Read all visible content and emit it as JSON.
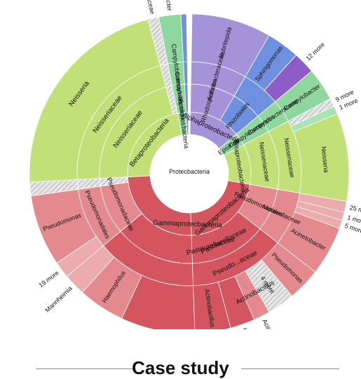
{
  "footer": {
    "title": "Case study"
  },
  "colors": {
    "proteo": "#ffffff",
    "gamma": "#d4545f",
    "gamma_light": "#e48a8e",
    "gamma_lighter": "#ecabac",
    "beta": "#c2e078",
    "beta_light": "#d2e895",
    "epsilon": "#8fd79f",
    "epsilon_light": "#a9e2b5",
    "alpha": "#a493d9",
    "alpha_light": "#b9abe4",
    "blue": "#6f8fe0",
    "purple": "#8e5cc9",
    "magenta": "#c73fb0",
    "hatch": "#c8c8c8"
  },
  "chart_data": [
    {
      "type": "sunburst",
      "label": "left-chart",
      "center": "Protecbacteria",
      "segments": [
        {
          "ring": 1,
          "start": 97,
          "end": 267,
          "color": "gamma",
          "label": "Gammaprotecbacteria"
        },
        {
          "ring": 1,
          "start": 267,
          "end": 349,
          "color": "beta",
          "label": "Betaproteobacteria"
        },
        {
          "ring": 1,
          "start": 349,
          "end": 357,
          "color": "epsilon",
          "label": "Epsilon... bacteria"
        },
        {
          "ring": 1,
          "start": 357,
          "end": 359,
          "color": "blue",
          "label": ""
        },
        {
          "ring": 2,
          "start": 97,
          "end": 230,
          "color": "gamma",
          "label": "Pasteurellaceae"
        },
        {
          "ring": 2,
          "start": 230,
          "end": 262,
          "color": "gamma_light",
          "label": "Pseudomonadaceae"
        },
        {
          "ring": 2,
          "start": 262,
          "end": 267,
          "color": "hatch",
          "label": ""
        },
        {
          "ring": 2,
          "start": 267,
          "end": 345,
          "color": "beta",
          "label": "Neisseriaceae"
        },
        {
          "ring": 2,
          "start": 345,
          "end": 349,
          "color": "hatch",
          "label": ""
        },
        {
          "ring": 2,
          "start": 349,
          "end": 357,
          "color": "epsilon",
          "label": "Campylobacterales"
        },
        {
          "ring": 2,
          "start": 357,
          "end": 359,
          "color": "blue",
          "label": ""
        },
        {
          "ring": 3,
          "start": 97,
          "end": 230,
          "color": "gamma",
          "label": ""
        },
        {
          "ring": 3,
          "start": 230,
          "end": 262,
          "color": "gamma_light",
          "label": "Pseudomonadales"
        },
        {
          "ring": 3,
          "start": 262,
          "end": 267,
          "color": "hatch",
          "label": ""
        },
        {
          "ring": 3,
          "start": 267,
          "end": 345,
          "color": "beta",
          "label": "Neisseriaceae"
        },
        {
          "ring": 3,
          "start": 345,
          "end": 349,
          "color": "hatch",
          "label": ""
        },
        {
          "ring": 3,
          "start": 349,
          "end": 357,
          "color": "epsilon",
          "label": "Campylobacteraceae"
        },
        {
          "ring": 3,
          "start": 357,
          "end": 359,
          "color": "blue",
          "label": ""
        },
        {
          "ring": 4,
          "start": 97,
          "end": 205,
          "color": "gamma",
          "label": "Actinobacillus"
        },
        {
          "ring": 4,
          "start": 205,
          "end": 222,
          "color": "gamma_light",
          "label": "Haemophilus"
        },
        {
          "ring": 4,
          "start": 222,
          "end": 230,
          "color": "gamma_lighter",
          "label": "Mannheimia"
        },
        {
          "ring": 4,
          "start": 230,
          "end": 236,
          "color": "gamma_lighter",
          "label": "19 more"
        },
        {
          "ring": 4,
          "start": 236,
          "end": 262,
          "color": "gamma_light",
          "label": "Pseudomonas"
        },
        {
          "ring": 4,
          "start": 262,
          "end": 267,
          "color": "hatch",
          "label": ""
        },
        {
          "ring": 4,
          "start": 267,
          "end": 345,
          "color": "beta",
          "label": "Neisseria"
        },
        {
          "ring": 4,
          "start": 345,
          "end": 349,
          "color": "hatch",
          "label": "Helicobacteraceae"
        },
        {
          "ring": 4,
          "start": 349,
          "end": 357,
          "color": "epsilon",
          "label": "Campylobacter"
        },
        {
          "ring": 4,
          "start": 357,
          "end": 359,
          "color": "blue",
          "label": ""
        }
      ]
    },
    {
      "type": "sunburst",
      "label": "right-chart",
      "segments": [
        {
          "ring": 1,
          "start": 1,
          "end": 50,
          "color": "alpha",
          "label": "Alphaproteobacteria"
        },
        {
          "ring": 1,
          "start": 50,
          "end": 62,
          "color": "epsilon",
          "label": "Epsilonp..."
        },
        {
          "ring": 1,
          "start": 62,
          "end": 100,
          "color": "beta",
          "label": "Betaproteobacteria"
        },
        {
          "ring": 1,
          "start": 100,
          "end": 178,
          "color": "gamma",
          "label": "Gammaproteobacteria"
        },
        {
          "ring": 2,
          "start": 1,
          "end": 30,
          "color": "alpha",
          "label": "Rhodospirillales"
        },
        {
          "ring": 2,
          "start": 30,
          "end": 50,
          "color": "blue",
          "label": "Rhizobiales"
        },
        {
          "ring": 2,
          "start": 50,
          "end": 62,
          "color": "epsilon",
          "label": "Campylobacterales"
        },
        {
          "ring": 2,
          "start": 62,
          "end": 100,
          "color": "beta",
          "label": "Neisseriaceae"
        },
        {
          "ring": 2,
          "start": 100,
          "end": 128,
          "color": "gamma_light",
          "label": "Pseudomonadales"
        },
        {
          "ring": 2,
          "start": 128,
          "end": 178,
          "color": "gamma",
          "label": "Pasteurellaceae"
        },
        {
          "ring": 3,
          "start": 1,
          "end": 30,
          "color": "alpha",
          "label": "Acetobacteraceae"
        },
        {
          "ring": 3,
          "start": 30,
          "end": 50,
          "color": "blue",
          "label": ""
        },
        {
          "ring": 3,
          "start": 50,
          "end": 62,
          "color": "epsilon",
          "label": "Campylobacteraceae"
        },
        {
          "ring": 3,
          "start": 62,
          "end": 100,
          "color": "beta",
          "label": "Neisseriaceae"
        },
        {
          "ring": 3,
          "start": 100,
          "end": 128,
          "color": "gamma_light",
          "label": "Moraxellaceae"
        },
        {
          "ring": 3,
          "start": 128,
          "end": 178,
          "color": "gamma",
          "label": "Pseudo...aceae"
        },
        {
          "ring": 4,
          "start": 1,
          "end": 30,
          "color": "alpha",
          "label": "Rubritepida"
        },
        {
          "ring": 4,
          "start": 30,
          "end": 42,
          "color": "blue",
          "label": "Sphingomonas"
        },
        {
          "ring": 4,
          "start": 42,
          "end": 50,
          "color": "purple",
          "label": "12 more"
        },
        {
          "ring": 4,
          "start": 50,
          "end": 62,
          "color": "epsilon",
          "label": "Campylobacter"
        },
        {
          "ring": 4,
          "start": 62,
          "end": 65,
          "color": "hatch",
          "label": "9 more"
        },
        {
          "ring": 4,
          "start": 65,
          "end": 68,
          "color": "epsilon_light",
          "label": "1 more"
        },
        {
          "ring": 4,
          "start": 68,
          "end": 100,
          "color": "beta",
          "label": "Neisseria"
        },
        {
          "ring": 4,
          "start": 100,
          "end": 104,
          "color": "gamma_lighter",
          "label": "25 more"
        },
        {
          "ring": 4,
          "start": 104,
          "end": 107,
          "color": "gamma_lighter",
          "label": "1 more"
        },
        {
          "ring": 4,
          "start": 107,
          "end": 110,
          "color": "gamma_lighter",
          "label": "5 more"
        },
        {
          "ring": 4,
          "start": 110,
          "end": 128,
          "color": "gamma_light",
          "label": "Acinetobacter"
        },
        {
          "ring": 4,
          "start": 128,
          "end": 140,
          "color": "gamma_light",
          "label": "Pseudomonas"
        },
        {
          "ring": 4,
          "start": 140,
          "end": 150,
          "color": "hatch",
          "label": "4 more"
        },
        {
          "ring": 4,
          "start": 150,
          "end": 156,
          "color": "gamma_light",
          "label": "Acinetobacter"
        },
        {
          "ring": 4,
          "start": 156,
          "end": 165,
          "color": "gamma",
          "label": "Haemophilus"
        },
        {
          "ring": 4,
          "start": 165,
          "end": 178,
          "color": "gamma",
          "label": "Actinobacillus"
        }
      ]
    }
  ]
}
